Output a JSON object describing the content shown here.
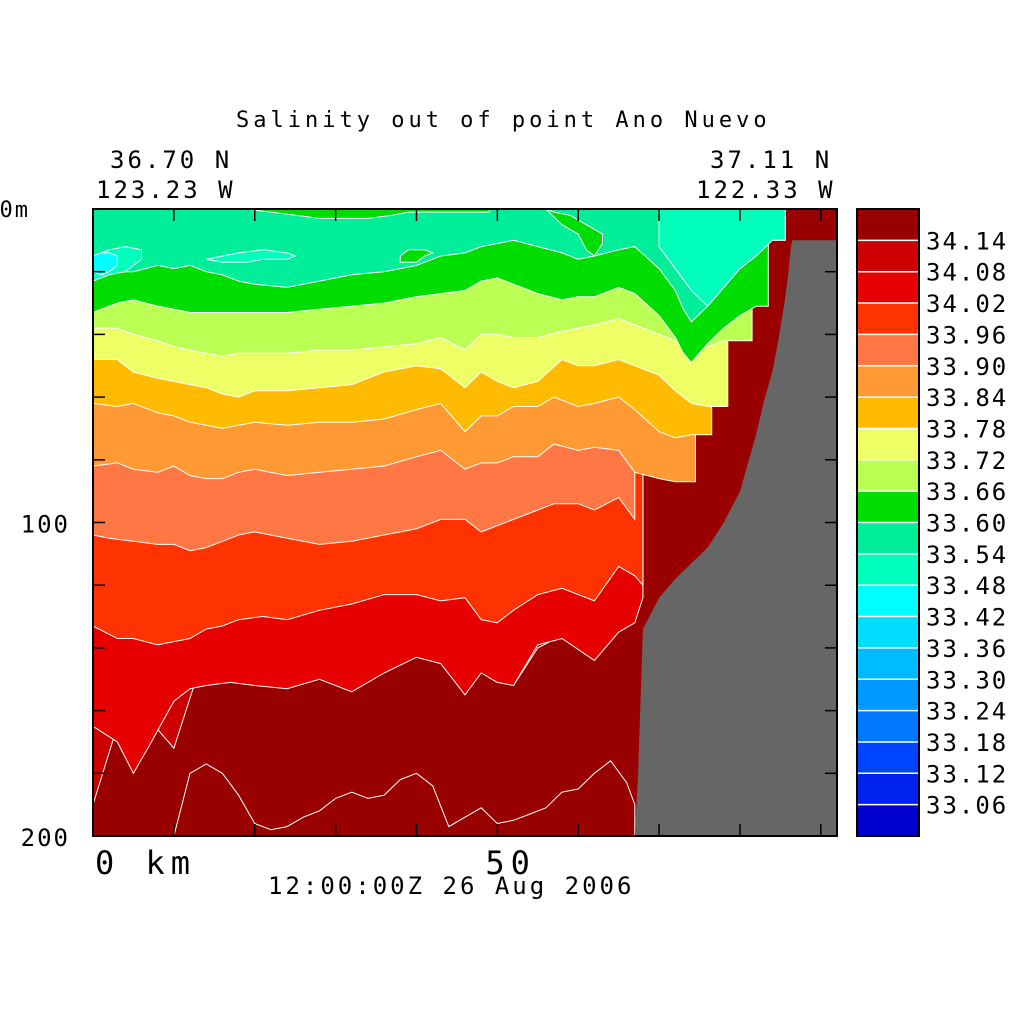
{
  "chart_data": {
    "type": "heatmap",
    "title": "Salinity out of point Ano Nuevo",
    "corner_labels": {
      "start_lat": "36.70 N",
      "start_lon": "123.23 W",
      "end_lat": "37.11 N",
      "end_lon": "122.33 W"
    },
    "timestamp": "12:00:00Z  26 Aug 2006",
    "x_axis": {
      "label_start": "0 km",
      "ticks": [
        {
          "value": 0,
          "label": "0 km"
        },
        {
          "value": 50,
          "label": "50"
        }
      ],
      "range": [
        0,
        92
      ]
    },
    "y_axis": {
      "ticks": [
        {
          "value": 0,
          "label": "0m"
        },
        {
          "value": 100,
          "label": "100"
        },
        {
          "value": 200,
          "label": "200"
        }
      ],
      "range": [
        0,
        200
      ],
      "inverted": true
    },
    "colorbar": {
      "levels": [
        "34.14",
        "34.08",
        "34.02",
        "33.96",
        "33.90",
        "33.84",
        "33.78",
        "33.72",
        "33.66",
        "33.60",
        "33.54",
        "33.48",
        "33.42",
        "33.36",
        "33.30",
        "33.24",
        "33.18",
        "33.12",
        "33.06"
      ],
      "colors": [
        "#990000",
        "#cc0000",
        "#e60000",
        "#ff3300",
        "#ff7744",
        "#ff9933",
        "#ffbb00",
        "#eeff66",
        "#bbff55",
        "#00dd00",
        "#00ee99",
        "#00ffbb",
        "#00ffff",
        "#00ddff",
        "#00bbff",
        "#0099ff",
        "#0077ff",
        "#0044ff",
        "#0022ee",
        "#0000cc"
      ]
    },
    "bands": [
      {
        "color": "#cc0000",
        "x": [
          0,
          3,
          7,
          10,
          13,
          17,
          20,
          24,
          28,
          32,
          36,
          40,
          43,
          46,
          48,
          50,
          52,
          55,
          58,
          62,
          65,
          66.8,
          68,
          68
        ],
        "d": [
          190,
          165,
          163,
          172,
          148,
          144,
          146,
          150,
          145,
          143,
          142,
          140,
          139,
          146,
          140,
          144,
          152,
          140,
          136,
          143,
          133,
          129,
          124,
          124
        ]
      },
      {
        "color": "#e60000",
        "x": [
          0,
          3,
          5,
          7,
          10,
          12,
          14,
          17,
          20,
          24,
          28,
          32,
          36,
          40,
          43,
          46,
          48,
          50,
          52,
          55,
          58,
          62,
          65,
          67,
          68
        ],
        "d": [
          165,
          170,
          180,
          171,
          157,
          153,
          152,
          151,
          152,
          153,
          150,
          154,
          148,
          143,
          145,
          155,
          148,
          151,
          152,
          139,
          137,
          144,
          135,
          132,
          124
        ]
      },
      {
        "color": "#ff3300",
        "x": [
          0,
          3,
          5,
          8,
          10,
          12,
          14,
          16,
          18,
          21,
          24,
          28,
          32,
          36,
          40,
          43,
          46,
          48,
          50,
          52,
          55,
          58,
          62,
          65,
          67,
          68
        ],
        "d": [
          133,
          137,
          137,
          139,
          138,
          137,
          134,
          133,
          131,
          130,
          131,
          128,
          126,
          123,
          123,
          125,
          124,
          131,
          132,
          128,
          123,
          121,
          125,
          114,
          117,
          120
        ]
      },
      {
        "color": "#ff7744",
        "x": [
          0,
          2,
          5,
          8,
          10,
          12,
          14,
          16,
          18,
          20,
          24,
          28,
          32,
          36,
          40,
          43,
          46,
          48,
          50,
          52,
          55,
          57,
          60,
          62,
          65,
          67
        ],
        "d": [
          104,
          105,
          106,
          107,
          107,
          109,
          108,
          106,
          104,
          103,
          105,
          107,
          106,
          104,
          102,
          99,
          99,
          103,
          101,
          99,
          96,
          94,
          94,
          96,
          92,
          99
        ]
      },
      {
        "color": "#ff9933",
        "x": [
          0,
          3,
          5,
          8,
          10,
          12,
          14,
          16,
          18,
          20,
          24,
          28,
          32,
          36,
          40,
          43,
          46,
          48,
          50,
          52,
          55,
          57,
          60,
          62,
          65,
          67,
          70,
          72,
          74.5
        ],
        "d": [
          82,
          81,
          83,
          84,
          82,
          85,
          86,
          86,
          84,
          83,
          85,
          84,
          83,
          82,
          79,
          77,
          83,
          81,
          81,
          79,
          79,
          75,
          77,
          76,
          77,
          84,
          86,
          87,
          87
        ]
      },
      {
        "color": "#ffbb00",
        "x": [
          0,
          3,
          5,
          8,
          10,
          12,
          14,
          16,
          18,
          20,
          24,
          28,
          32,
          36,
          40,
          43,
          46,
          48,
          50,
          52,
          55,
          57,
          60,
          62,
          65,
          67,
          70,
          72,
          74,
          76.5
        ],
        "d": [
          62,
          63,
          62,
          65,
          66,
          68,
          69,
          70,
          69,
          68,
          69,
          68,
          68,
          67,
          64,
          62,
          71,
          66,
          66,
          63,
          63,
          60,
          63,
          62,
          60,
          64,
          71,
          73,
          72,
          72
        ]
      },
      {
        "color": "#eeff66",
        "x": [
          0,
          3,
          5,
          8,
          10,
          12,
          14,
          16,
          18,
          20,
          24,
          28,
          32,
          36,
          40,
          43,
          46,
          48,
          50,
          52,
          55,
          58,
          60,
          62,
          65,
          67,
          70,
          72,
          74,
          76,
          78.5
        ],
        "d": [
          48,
          48,
          52,
          54,
          55,
          56,
          57,
          59,
          60,
          58,
          58,
          57,
          56,
          52,
          50,
          51,
          57,
          52,
          55,
          57,
          55,
          48,
          50,
          50,
          48,
          50,
          53,
          58,
          62,
          63,
          63
        ]
      },
      {
        "color": "#bbff55",
        "x": [
          0,
          3,
          5,
          8,
          10,
          12,
          14,
          16,
          18,
          20,
          24,
          28,
          32,
          36,
          40,
          43,
          46,
          48,
          50,
          52,
          55,
          58,
          60,
          62,
          65,
          67,
          70,
          72,
          74,
          76,
          78,
          80,
          81.5
        ],
        "d": [
          38,
          38,
          40,
          42,
          44,
          45,
          46,
          47,
          46,
          46,
          46,
          45,
          45,
          44,
          43,
          41,
          45,
          40,
          40,
          41,
          41,
          39,
          38,
          37,
          35,
          37,
          40,
          42,
          44,
          44,
          42,
          42,
          42
        ]
      },
      {
        "color": "#00dd00",
        "x": [
          0,
          3,
          5,
          8,
          10,
          12,
          14,
          16,
          18,
          20,
          24,
          28,
          32,
          36,
          40,
          43,
          46,
          48,
          50,
          52,
          55,
          58,
          60,
          62,
          65,
          67,
          70,
          72,
          73,
          74,
          76,
          78,
          80,
          82,
          83.5
        ],
        "d": [
          33,
          30,
          29,
          31,
          32,
          33,
          33,
          33,
          33,
          33,
          33,
          32,
          31,
          30,
          28,
          27,
          26,
          23,
          22,
          24,
          27,
          29,
          28,
          28,
          25,
          27,
          34,
          41,
          46,
          49,
          43,
          38,
          34,
          31,
          31
        ]
      },
      {
        "color": "#00ee99",
        "x": [
          0,
          3,
          5,
          8,
          10,
          12,
          14,
          16,
          18,
          20,
          24,
          28,
          32,
          36,
          40,
          43,
          46,
          48,
          50,
          52,
          55,
          58,
          60,
          62,
          65,
          67,
          70,
          72,
          73,
          74,
          76,
          78,
          80,
          82,
          84,
          85.6
        ],
        "d": [
          22,
          20,
          20,
          18,
          19,
          18,
          20,
          21,
          23,
          24,
          25,
          23,
          21,
          20,
          18,
          15,
          14,
          12,
          11,
          10,
          12,
          14,
          16,
          15,
          13,
          12,
          19,
          26,
          32,
          36,
          31,
          25,
          19,
          15,
          10,
          10
        ]
      },
      {
        "color": "#00ffbb",
        "x": [
          0,
          1,
          2,
          4,
          5,
          6,
          6,
          4,
          2,
          1,
          0
        ],
        "d": [
          23,
          22,
          21,
          20,
          18,
          16,
          13,
          12,
          13,
          14,
          15
        ]
      },
      {
        "color": "#00ffff",
        "x": [
          0,
          1,
          2,
          3,
          3,
          2,
          1,
          0
        ],
        "d": [
          20,
          21,
          20,
          18,
          15,
          14,
          14,
          15
        ]
      }
    ],
    "inner_patches": [
      {
        "color": "#00ffbb",
        "x": [
          14,
          16,
          19,
          21,
          24,
          25,
          24,
          21,
          18,
          16,
          14
        ],
        "d": [
          16,
          17,
          17,
          16,
          16,
          15,
          14,
          13,
          14,
          15,
          16
        ]
      },
      {
        "color": "#00ffbb",
        "x": [
          70,
          72,
          74,
          76,
          78,
          80,
          82,
          84,
          85.6,
          85.6,
          84,
          82,
          80,
          78,
          76,
          74,
          72,
          70
        ],
        "d": [
          12,
          19,
          26,
          31,
          25,
          19,
          15,
          10,
          10,
          0,
          0,
          0,
          0,
          0,
          0,
          0,
          0,
          0
        ]
      },
      {
        "color": "#00dd00",
        "x": [
          19,
          22,
          25,
          28,
          31,
          34,
          37,
          39,
          40,
          44,
          47,
          49,
          49,
          47,
          44,
          41,
          38,
          35,
          32,
          29,
          26,
          23,
          19
        ],
        "d": [
          0,
          1,
          2,
          3,
          3,
          3,
          2,
          1,
          1,
          1,
          1,
          1,
          0,
          0,
          0,
          0,
          0,
          0,
          0,
          0,
          0,
          0,
          0
        ]
      },
      {
        "color": "#00dd00",
        "x": [
          38,
          40,
          41,
          42,
          41,
          39,
          38
        ],
        "d": [
          17,
          17,
          15,
          14,
          13,
          13,
          15
        ]
      },
      {
        "color": "#00dd00",
        "x": [
          56,
          58,
          60,
          61,
          62,
          63,
          63,
          61,
          59,
          57,
          56
        ],
        "d": [
          0,
          5,
          8,
          13,
          15,
          11,
          8,
          5,
          2,
          1,
          0
        ]
      },
      {
        "color": "#990000",
        "x": [
          10,
          12,
          14,
          16,
          18,
          20,
          22,
          24,
          26,
          28,
          30,
          32,
          34,
          36,
          38,
          40,
          42,
          44,
          46,
          48,
          50,
          52,
          54,
          56,
          58,
          60,
          62,
          64,
          66,
          67,
          67
        ],
        "d": [
          200,
          180,
          177,
          180,
          187,
          196,
          198,
          197,
          194,
          192,
          188,
          186,
          188,
          187,
          182,
          180,
          184,
          197,
          194,
          191,
          196,
          195,
          193,
          191,
          186,
          185,
          180,
          176,
          183,
          190,
          200
        ]
      }
    ],
    "land": {
      "color": "#666666",
      "x": [
        67,
        67.4,
        68,
        70,
        72,
        74,
        76,
        78,
        80,
        81,
        82,
        83,
        84,
        84.8,
        85.5,
        86,
        86.3,
        86.5,
        92,
        92
      ],
      "d": [
        200,
        180,
        134,
        124,
        118,
        113,
        108,
        100,
        90,
        81,
        72,
        61,
        52,
        41,
        30,
        20,
        12,
        10,
        10,
        200
      ]
    }
  }
}
